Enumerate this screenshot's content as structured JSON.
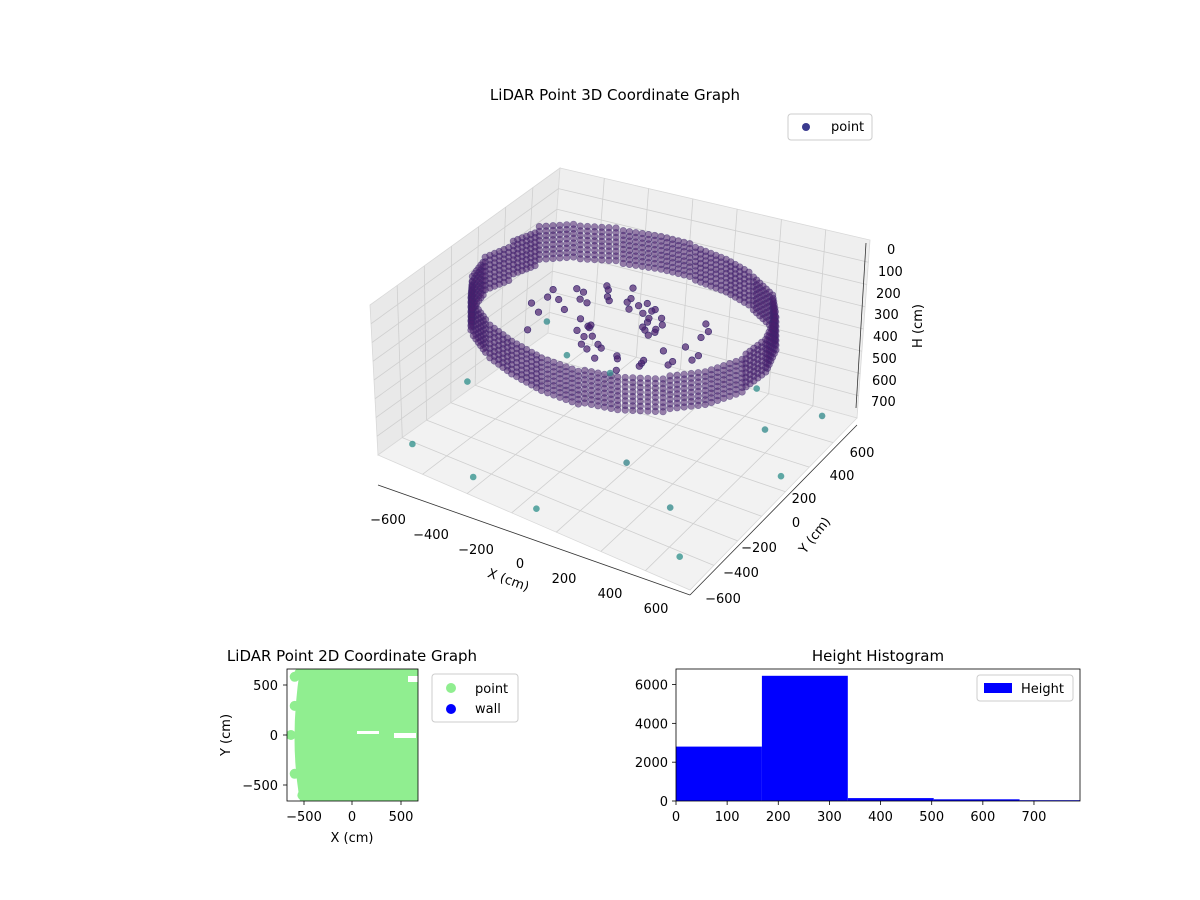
{
  "chart_data": [
    {
      "type": "scatter",
      "projection": "3d",
      "title": "LiDAR Point 3D Coordinate Graph",
      "xlabel": "X (cm)",
      "ylabel": "Y (cm)",
      "zlabel": "H (cm)",
      "xlim": [
        -700,
        700
      ],
      "ylim": [
        -700,
        700
      ],
      "zlim": [
        750,
        0
      ],
      "z_axis_inverted": true,
      "x_ticks": [
        "−600",
        "−400",
        "−200",
        "0",
        "200",
        "400",
        "600"
      ],
      "y_ticks": [
        "−600",
        "−400",
        "−200",
        "0",
        "200",
        "400",
        "600"
      ],
      "z_ticks": [
        "0",
        "100",
        "200",
        "300",
        "400",
        "500",
        "600",
        "700"
      ],
      "grid": true,
      "legend": {
        "placement": "top-right",
        "entries": [
          {
            "label": "point",
            "color": "#3b3b8f"
          }
        ]
      },
      "colormap": "viridis (height)",
      "series": [
        {
          "name": "point",
          "description": "ring-shaped wall of points around the scan center",
          "x": [
            -520,
            -400,
            -250,
            -100,
            50,
            200,
            350,
            480,
            560,
            600,
            580,
            500,
            380,
            230,
            80,
            -80,
            -230,
            -380,
            -500,
            -570,
            -600,
            -560
          ],
          "y": [
            300,
            420,
            500,
            540,
            550,
            530,
            480,
            400,
            280,
            120,
            -40,
            -200,
            -330,
            -430,
            -480,
            -490,
            -460,
            -400,
            -300,
            -160,
            0,
            160
          ],
          "h": [
            150,
            160,
            170,
            170,
            180,
            180,
            190,
            190,
            200,
            200,
            210,
            210,
            220,
            220,
            230,
            230,
            230,
            220,
            210,
            200,
            190,
            170
          ]
        }
      ]
    },
    {
      "type": "scatter",
      "title": "LiDAR Point 2D Coordinate Graph",
      "xlabel": "X (cm)",
      "ylabel": "Y (cm)",
      "xlim": [
        -680,
        680
      ],
      "ylim": [
        -680,
        680
      ],
      "x_ticks": [
        "−500",
        "0",
        "500"
      ],
      "y_ticks": [
        "−500",
        "0",
        "500"
      ],
      "legend": {
        "placement": "outside-right",
        "entries": [
          {
            "label": "point",
            "color": "#90ee90"
          },
          {
            "label": "wall",
            "color": "#0000ff"
          }
        ]
      },
      "series": [
        {
          "name": "point",
          "color": "#90ee90",
          "x": [
            -600,
            -550,
            -500,
            -420,
            -330,
            -200,
            0,
            200,
            400,
            600,
            640,
            600,
            400,
            200,
            0,
            -200,
            -400,
            -520,
            -600,
            -640,
            -600,
            -480
          ],
          "y": [
            600,
            640,
            560,
            640,
            640,
            640,
            640,
            640,
            640,
            600,
            200,
            -600,
            -640,
            -640,
            -640,
            -640,
            -620,
            -620,
            -400,
            0,
            300,
            -600
          ]
        },
        {
          "name": "wall",
          "color": "#0000ff",
          "x": [],
          "y": []
        }
      ]
    },
    {
      "type": "bar",
      "title": "Height Histogram",
      "xlabel": "",
      "ylabel": "",
      "bin_edges": [
        0,
        168,
        336,
        504,
        672,
        790
      ],
      "values": [
        2800,
        6450,
        150,
        90,
        40
      ],
      "xlim": [
        0,
        790
      ],
      "ylim": [
        0,
        6800
      ],
      "x_ticks": [
        "0",
        "100",
        "200",
        "300",
        "400",
        "500",
        "600",
        "700"
      ],
      "y_ticks": [
        "0",
        "2000",
        "4000",
        "6000"
      ],
      "legend": {
        "placement": "top-right",
        "entries": [
          {
            "label": "Height",
            "color": "#0000ff"
          }
        ]
      },
      "series": [
        {
          "name": "Height",
          "color": "#0000ff"
        }
      ]
    }
  ]
}
